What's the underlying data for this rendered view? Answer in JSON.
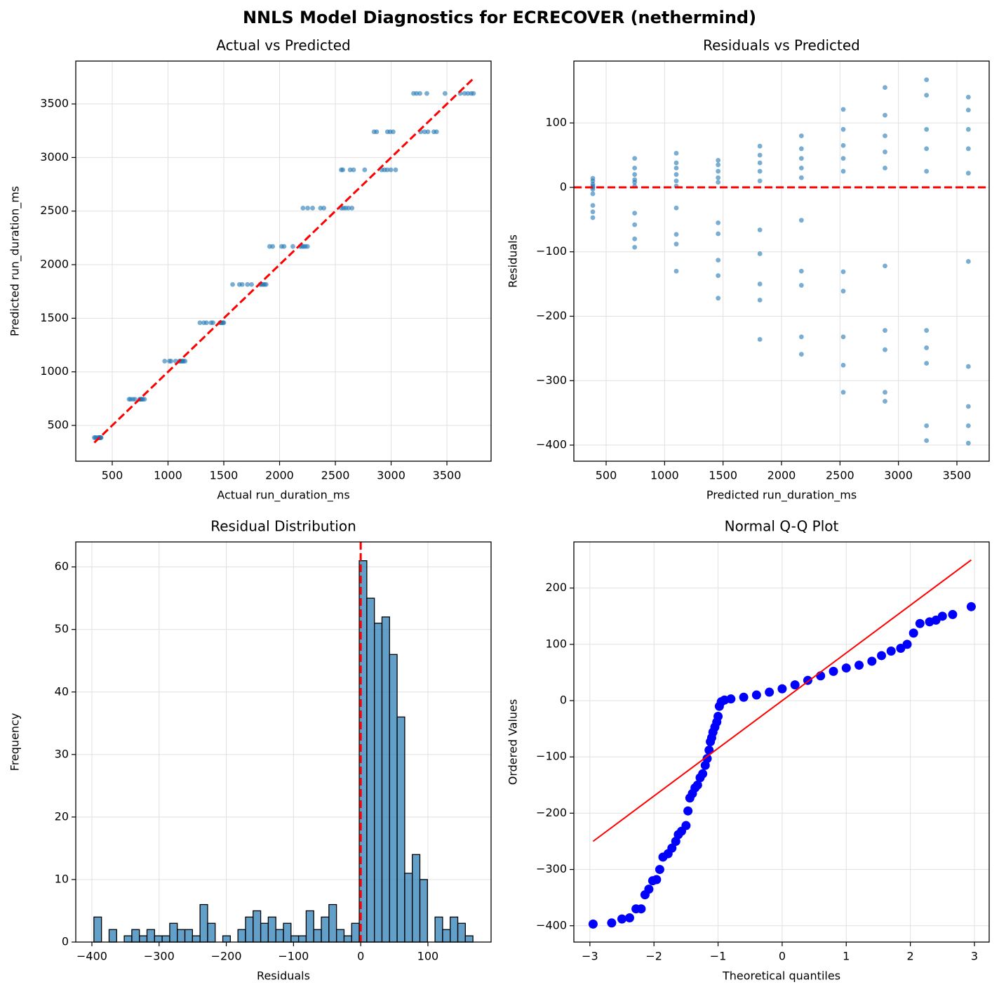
{
  "title": "NNLS Model Diagnostics for ECRECOVER (nethermind)",
  "chart_data": [
    {
      "type": "scatter",
      "title": "Actual vs Predicted",
      "x_label": "Actual run_duration_ms",
      "y_label": "Predicted run_duration_ms",
      "xlim": [
        173,
        3896
      ],
      "ylim": [
        166,
        3900
      ],
      "xticks": [
        500,
        1000,
        1500,
        2000,
        2500,
        3000,
        3500
      ],
      "yticks": [
        500,
        1000,
        1500,
        2000,
        2500,
        3000,
        3500
      ],
      "grid": true,
      "color": "#1f77b4",
      "opacity": 0.6,
      "marker_size": 3.4,
      "x": [
        400,
        396,
        391,
        388,
        386,
        383,
        376,
        358,
        348,
        339,
        789,
        774,
        764,
        756,
        752,
        746,
        704,
        686,
        664,
        651,
        1153,
        1138,
        1130,
        1120,
        1110,
        1102,
        1068,
        1027,
        1012,
        970,
        1500,
        1493,
        1483,
        1473,
        1466,
        1403,
        1386,
        1345,
        1321,
        1286,
        1879,
        1865,
        1853,
        1840,
        1825,
        1749,
        1712,
        1665,
        1640,
        1579,
        2250,
        2230,
        2215,
        2200,
        2185,
        2119,
        2040,
        2018,
        1938,
        1911,
        2649,
        2618,
        2593,
        2573,
        2553,
        2397,
        2367,
        2296,
        2252,
        2210,
        3040,
        2997,
        2965,
        2940,
        2915,
        2763,
        2663,
        2633,
        2567,
        2553,
        3407,
        3383,
        3330,
        3300,
        3265,
        3018,
        2991,
        2967,
        2870,
        2847,
        3738,
        3718,
        3688,
        3658,
        3620,
        3483,
        3320,
        3258,
        3228,
        3201
      ],
      "values": [
        386,
        386,
        386,
        386,
        386,
        386,
        386,
        386,
        386,
        386,
        744,
        744,
        744,
        744,
        744,
        744,
        744,
        744,
        744,
        744,
        1100,
        1100,
        1100,
        1100,
        1100,
        1100,
        1100,
        1100,
        1100,
        1100,
        1458,
        1458,
        1458,
        1458,
        1458,
        1458,
        1458,
        1458,
        1458,
        1458,
        1815,
        1815,
        1815,
        1815,
        1815,
        1815,
        1815,
        1815,
        1815,
        1815,
        2170,
        2170,
        2170,
        2170,
        2170,
        2170,
        2170,
        2170,
        2170,
        2170,
        2528,
        2528,
        2528,
        2528,
        2528,
        2528,
        2528,
        2528,
        2528,
        2528,
        2885,
        2885,
        2885,
        2885,
        2885,
        2885,
        2885,
        2885,
        2885,
        2885,
        3240,
        3240,
        3240,
        3240,
        3240,
        3240,
        3240,
        3240,
        3240,
        3240,
        3598,
        3598,
        3598,
        3598,
        3598,
        3598,
        3598,
        3598,
        3598,
        3598
      ],
      "reference_line": {
        "x": [
          339,
          3730
        ],
        "y": [
          339,
          3730
        ],
        "color": "#ff0000",
        "style": "dashed"
      }
    },
    {
      "type": "scatter",
      "title": "Residuals vs Predicted",
      "x_label": "Predicted run_duration_ms",
      "y_label": "Residuals",
      "xlim": [
        224,
        3776
      ],
      "ylim": [
        -425,
        196
      ],
      "xticks": [
        500,
        1000,
        1500,
        2000,
        2500,
        3000,
        3500
      ],
      "yticks": [
        {
          "value": -400,
          "label": "−400"
        },
        {
          "value": -300,
          "label": "−300"
        },
        {
          "value": -200,
          "label": "−200"
        },
        {
          "value": -100,
          "label": "−100"
        },
        0,
        100
      ],
      "grid": true,
      "color": "#1f77b4",
      "opacity": 0.6,
      "marker_size": 3.4,
      "x": [
        386,
        386,
        386,
        386,
        386,
        386,
        386,
        386,
        386,
        386,
        744,
        744,
        744,
        744,
        744,
        744,
        744,
        744,
        744,
        744,
        1100,
        1100,
        1100,
        1100,
        1100,
        1100,
        1100,
        1100,
        1100,
        1100,
        1458,
        1458,
        1458,
        1458,
        1458,
        1458,
        1458,
        1458,
        1458,
        1458,
        1815,
        1815,
        1815,
        1815,
        1815,
        1815,
        1815,
        1815,
        1815,
        1815,
        2170,
        2170,
        2170,
        2170,
        2170,
        2170,
        2170,
        2170,
        2170,
        2170,
        2528,
        2528,
        2528,
        2528,
        2528,
        2528,
        2528,
        2528,
        2528,
        2528,
        2885,
        2885,
        2885,
        2885,
        2885,
        2885,
        2885,
        2885,
        2885,
        2885,
        3240,
        3240,
        3240,
        3240,
        3240,
        3240,
        3240,
        3240,
        3240,
        3240,
        3598,
        3598,
        3598,
        3598,
        3598,
        3598,
        3598,
        3598,
        3598,
        3598
      ],
      "values": [
        14,
        10,
        5,
        2,
        0,
        -3,
        -10,
        -28,
        -38,
        -47,
        45,
        30,
        20,
        12,
        8,
        2,
        -40,
        -58,
        -80,
        -93,
        53,
        38,
        30,
        20,
        10,
        2,
        -32,
        -73,
        -88,
        -130,
        42,
        35,
        25,
        15,
        8,
        -55,
        -72,
        -113,
        -137,
        -172,
        64,
        50,
        38,
        25,
        10,
        -66,
        -103,
        -150,
        -175,
        -236,
        80,
        60,
        45,
        30,
        15,
        -51,
        -130,
        -152,
        -232,
        -259,
        121,
        90,
        65,
        45,
        25,
        -131,
        -161,
        -232,
        -276,
        -318,
        155,
        112,
        80,
        55,
        30,
        -122,
        -222,
        -252,
        -318,
        -332,
        167,
        143,
        90,
        60,
        25,
        -222,
        -249,
        -273,
        -370,
        -393,
        140,
        120,
        90,
        60,
        22,
        -115,
        -278,
        -340,
        -370,
        -397
      ],
      "hline": {
        "y": 0,
        "color": "#ff0000",
        "style": "dashed"
      }
    },
    {
      "type": "histogram",
      "title": "Residual Distribution",
      "x_label": "Residuals",
      "y_label": "Frequency",
      "xlim": [
        -424,
        194
      ],
      "ylim": [
        0,
        64
      ],
      "xticks": [
        {
          "value": -400,
          "label": "−400"
        },
        {
          "value": -300,
          "label": "−300"
        },
        {
          "value": -200,
          "label": "−200"
        },
        {
          "value": -100,
          "label": "−100"
        },
        0,
        100
      ],
      "yticks": [
        0,
        10,
        20,
        30,
        40,
        50,
        60
      ],
      "grid": true,
      "color": "#1f77b4",
      "opacity": 0.7,
      "edge_color": "#000000",
      "bins": [
        -397,
        -385.72,
        -374.44,
        -363.16,
        -351.88,
        -340.6,
        -329.32,
        -318.04,
        -306.76,
        -295.48,
        -284.2,
        -272.92,
        -261.64,
        -250.36,
        -239.08,
        -227.8,
        -216.52,
        -205.24,
        -193.96,
        -182.68,
        -171.4,
        -160.12,
        -148.84,
        -137.56,
        -126.28,
        -115,
        -103.72,
        -92.44,
        -81.16,
        -69.88,
        -58.6,
        -47.32,
        -36.04,
        -24.76,
        -13.48,
        -2.2,
        9.08,
        20.36,
        31.64,
        42.92,
        54.2,
        65.48,
        76.76,
        88.04,
        99.32,
        110.6,
        121.88,
        133.16,
        144.44,
        155.72,
        167
      ],
      "values": [
        4,
        0,
        2,
        0,
        1,
        2,
        1,
        2,
        1,
        1,
        3,
        2,
        2,
        1,
        6,
        3,
        0,
        1,
        0,
        2,
        4,
        5,
        3,
        4,
        2,
        3,
        1,
        1,
        5,
        2,
        4,
        6,
        2,
        1,
        3,
        61,
        55,
        51,
        52,
        46,
        36,
        11,
        14,
        10,
        0,
        4,
        2,
        4,
        3,
        1
      ],
      "vline": {
        "x": 0,
        "color": "#ff0000",
        "style": "dashed"
      }
    },
    {
      "type": "scatter",
      "title": "Normal Q-Q Plot",
      "x_label": "Theoretical quantiles",
      "y_label": "Ordered Values",
      "xlim": [
        -3.25,
        3.23
      ],
      "ylim": [
        -429,
        282
      ],
      "xticks": [
        {
          "value": -3,
          "label": "−3"
        },
        {
          "value": -2,
          "label": "−2"
        },
        {
          "value": -1,
          "label": "−1"
        },
        0,
        1,
        2,
        3
      ],
      "yticks": [
        {
          "value": -400,
          "label": "−400"
        },
        {
          "value": -300,
          "label": "−300"
        },
        {
          "value": -200,
          "label": "−200"
        },
        {
          "value": -100,
          "label": "−100"
        },
        0,
        100,
        200
      ],
      "grid": true,
      "color": "#0000ff",
      "opacity": 1,
      "marker_size": 6.5,
      "x": [
        -2.95,
        -2.66,
        -2.5,
        -2.38,
        -2.28,
        -2.2,
        -2.14,
        -2.08,
        -2.02,
        -1.96,
        -1.91,
        -1.86,
        -1.78,
        -1.72,
        -1.66,
        -1.62,
        -1.57,
        -1.5,
        -1.47,
        -1.44,
        -1.4,
        -1.36,
        -1.32,
        -1.28,
        -1.24,
        -1.2,
        -1.17,
        -1.14,
        -1.12,
        -1.1,
        -1.08,
        -1.05,
        -1.02,
        -1.0,
        -0.98,
        -0.95,
        -0.9,
        -0.8,
        -0.6,
        -0.4,
        -0.2,
        0,
        0.2,
        0.4,
        0.6,
        0.8,
        1.0,
        1.2,
        1.4,
        1.55,
        1.7,
        1.85,
        1.95,
        2.05,
        2.15,
        2.3,
        2.4,
        2.5,
        2.66,
        2.95
      ],
      "values": [
        -397,
        -395,
        -388,
        -386,
        -370,
        -370,
        -345,
        -335,
        -320,
        -318,
        -300,
        -278,
        -272,
        -262,
        -250,
        -238,
        -232,
        -222,
        -196,
        -173,
        -165,
        -155,
        -150,
        -137,
        -130,
        -115,
        -103,
        -88,
        -73,
        -66,
        -56,
        -47,
        -38,
        -28,
        -10,
        -2,
        1,
        3,
        6,
        10,
        15,
        21,
        28,
        36,
        44,
        52,
        58,
        63,
        70,
        80,
        88,
        93,
        100,
        120,
        137,
        140,
        143,
        150,
        153,
        167
      ],
      "reference_line": {
        "x": [
          -2.95,
          2.95
        ],
        "y": [
          -250,
          250
        ],
        "color": "#ff0000",
        "style": "solid"
      }
    }
  ]
}
